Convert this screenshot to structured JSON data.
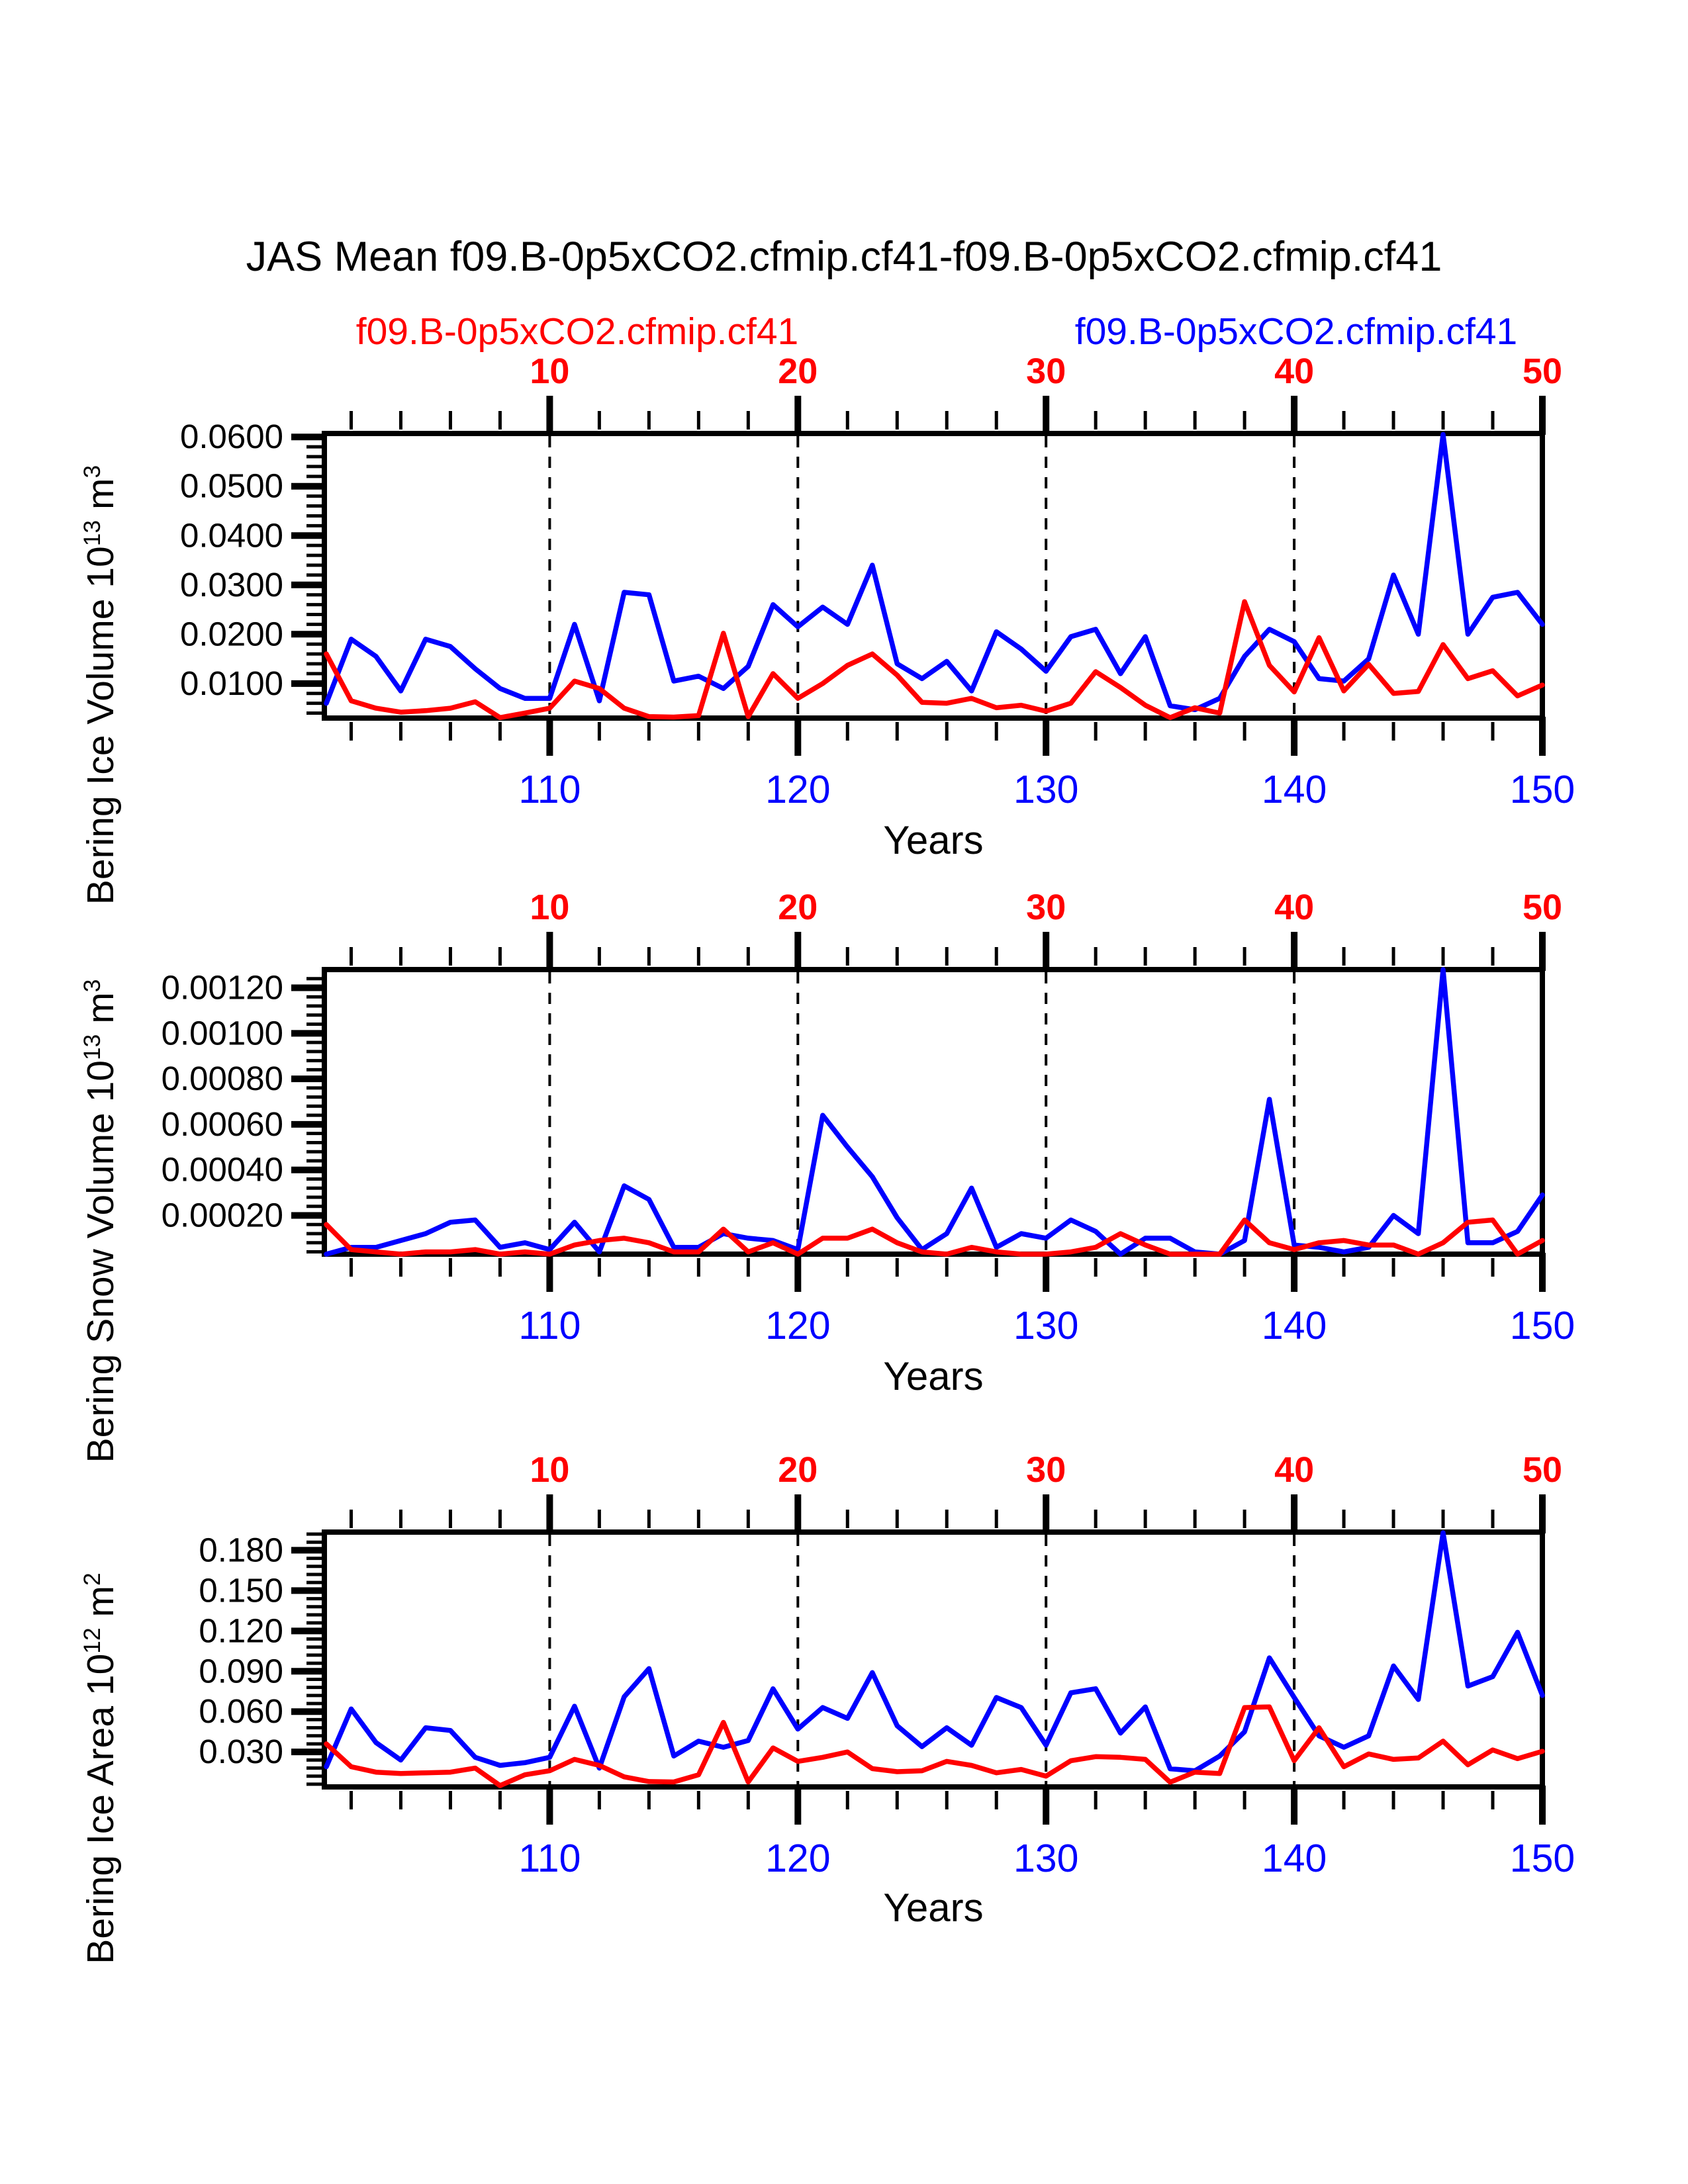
{
  "page": {
    "title": "JAS Mean f09.B-0p5xCO2.cfmip.cf41-f09.B-0p5xCO2.cfmip.cf41"
  },
  "legend": {
    "series1_label": "f09.B-0p5xCO2.cfmip.cf41",
    "series1_color": "#ff0000",
    "series2_label": "f09.B-0p5xCO2.cfmip.cf41",
    "series2_color": "#0000ff",
    "position": "top"
  },
  "chart_data": [
    {
      "type": "line",
      "panel": "bering-ice-volume",
      "ylabel": {
        "base": "Bering Ice Volume 10",
        "exp": "13",
        "unit": "m",
        "unit_exp": "3"
      },
      "xlabel": "Years",
      "top_axis_ticks": [
        10,
        20,
        30,
        40,
        50
      ],
      "top_axis_color": "#ff0000",
      "bottom_axis_ticks": [
        110,
        120,
        130,
        140,
        150
      ],
      "bottom_axis_color": "#0000ff",
      "grid_years": [
        110,
        120,
        130,
        140
      ],
      "grid_style": "dashed",
      "x_start": 101,
      "x": [
        101,
        102,
        103,
        104,
        105,
        106,
        107,
        108,
        109,
        110,
        111,
        112,
        113,
        114,
        115,
        116,
        117,
        118,
        119,
        120,
        121,
        122,
        123,
        124,
        125,
        126,
        127,
        128,
        129,
        130,
        131,
        132,
        133,
        134,
        135,
        136,
        137,
        138,
        139,
        140,
        141,
        142,
        143,
        144,
        145,
        146,
        147,
        148,
        149,
        150
      ],
      "ylim": [
        0.003,
        0.0607
      ],
      "yticks": [
        {
          "value": 0.06,
          "label": "0.0600"
        },
        {
          "value": 0.05,
          "label": "0.0500"
        },
        {
          "value": 0.04,
          "label": "0.0400"
        },
        {
          "value": 0.03,
          "label": "0.0300"
        },
        {
          "value": 0.02,
          "label": "0.0200"
        },
        {
          "value": 0.01,
          "label": "0.0100"
        }
      ],
      "y_minor": {
        "start": 0.004,
        "step": 0.002,
        "end": 0.0585,
        "major": 0.01
      },
      "series": [
        {
          "name": "f09.B-0p5xCO2.cfmip.cf41",
          "color": "#ff0000",
          "values": [
            0.016,
            0.0065,
            0.005,
            0.0042,
            0.0045,
            0.005,
            0.0063,
            0.0031,
            0.004,
            0.005,
            0.0105,
            0.009,
            0.005,
            0.0033,
            0.0032,
            0.0035,
            0.0202,
            0.0033,
            0.012,
            0.007,
            0.01,
            0.0137,
            0.016,
            0.0117,
            0.0062,
            0.006,
            0.007,
            0.0051,
            0.0056,
            0.0044,
            0.006,
            0.0124,
            0.0092,
            0.0056,
            0.0031,
            0.0051,
            0.004,
            0.0266,
            0.0137,
            0.0083,
            0.0193,
            0.0085,
            0.0139,
            0.008,
            0.0084,
            0.0179,
            0.011,
            0.0126,
            0.0075,
            0.0097
          ]
        },
        {
          "name": "f09.B-0p5xCO2.cfmip.cf41",
          "color": "#0000ff",
          "values": [
            0.006,
            0.019,
            0.0155,
            0.0085,
            0.019,
            0.0175,
            0.013,
            0.009,
            0.007,
            0.007,
            0.022,
            0.0065,
            0.0285,
            0.028,
            0.0105,
            0.0115,
            0.009,
            0.0135,
            0.026,
            0.0215,
            0.0255,
            0.022,
            0.034,
            0.014,
            0.011,
            0.0145,
            0.0085,
            0.0205,
            0.017,
            0.0125,
            0.0195,
            0.021,
            0.012,
            0.0195,
            0.0055,
            0.0047,
            0.007,
            0.0155,
            0.021,
            0.0185,
            0.011,
            0.0105,
            0.015,
            0.032,
            0.02,
            0.0605,
            0.02,
            0.0275,
            0.0285,
            0.022
          ]
        }
      ]
    },
    {
      "type": "line",
      "panel": "bering-snow-volume",
      "ylabel": {
        "base": "Bering Snow Volume 10",
        "exp": "13",
        "unit": "m",
        "unit_exp": "3"
      },
      "xlabel": "Years",
      "top_axis_ticks": [
        10,
        20,
        30,
        40,
        50
      ],
      "top_axis_color": "#ff0000",
      "bottom_axis_ticks": [
        110,
        120,
        130,
        140,
        150
      ],
      "bottom_axis_color": "#0000ff",
      "grid_years": [
        110,
        120,
        130,
        140
      ],
      "grid_style": "dashed",
      "x_start": 101,
      "x": [
        101,
        102,
        103,
        104,
        105,
        106,
        107,
        108,
        109,
        110,
        111,
        112,
        113,
        114,
        115,
        116,
        117,
        118,
        119,
        120,
        121,
        122,
        123,
        124,
        125,
        126,
        127,
        128,
        129,
        130,
        131,
        132,
        133,
        134,
        135,
        136,
        137,
        138,
        139,
        140,
        141,
        142,
        143,
        144,
        145,
        146,
        147,
        148,
        149,
        150
      ],
      "ylim": [
        3e-05,
        0.00128
      ],
      "yticks": [
        {
          "value": 0.0012,
          "label": "0.00120"
        },
        {
          "value": 0.001,
          "label": "0.00100"
        },
        {
          "value": 0.0008,
          "label": "0.00080"
        },
        {
          "value": 0.0006,
          "label": "0.00060"
        },
        {
          "value": 0.0004,
          "label": "0.00040"
        },
        {
          "value": 0.0002,
          "label": "0.00020"
        }
      ],
      "y_minor": {
        "start": 4e-05,
        "step": 4e-05,
        "end": 0.00125,
        "major": 0.0002
      },
      "series": [
        {
          "name": "f09.B-0p5xCO2.cfmip.cf41",
          "color": "#ff0000",
          "values": [
            0.00016,
            5e-05,
            4e-05,
            3e-05,
            4e-05,
            4e-05,
            5e-05,
            3e-05,
            4e-05,
            3e-05,
            7e-05,
            9e-05,
            0.0001,
            8e-05,
            4e-05,
            4e-05,
            0.00014,
            4e-05,
            8e-05,
            3e-05,
            0.0001,
            0.0001,
            0.00014,
            8e-05,
            4e-05,
            3e-05,
            6e-05,
            4e-05,
            3e-05,
            3e-05,
            4e-05,
            6e-05,
            0.00012,
            7e-05,
            3e-05,
            3e-05,
            3e-05,
            0.00018,
            8e-05,
            5e-05,
            8e-05,
            9e-05,
            7e-05,
            7e-05,
            3e-05,
            8e-05,
            0.00017,
            0.00018,
            3e-05,
            9e-05
          ]
        },
        {
          "name": "f09.B-0p5xCO2.cfmip.cf41",
          "color": "#0000ff",
          "values": [
            3e-05,
            6e-05,
            6e-05,
            9e-05,
            0.00012,
            0.00017,
            0.00018,
            6e-05,
            8e-05,
            5e-05,
            0.00017,
            4e-05,
            0.00033,
            0.00027,
            6e-05,
            6e-05,
            0.00012,
            0.0001,
            9e-05,
            5e-05,
            0.00064,
            0.0005,
            0.00037,
            0.00019,
            5e-05,
            0.00012,
            0.00032,
            6e-05,
            0.00012,
            0.0001,
            0.00018,
            0.00013,
            3e-05,
            0.0001,
            0.0001,
            4e-05,
            3e-05,
            9e-05,
            0.00071,
            7e-05,
            6e-05,
            4e-05,
            6e-05,
            0.0002,
            0.00012,
            0.00128,
            8e-05,
            8e-05,
            0.00013,
            0.00029
          ]
        }
      ]
    },
    {
      "type": "line",
      "panel": "bering-ice-area",
      "ylabel": {
        "base": "Bering Ice Area 10",
        "exp": "12",
        "unit": "m",
        "unit_exp": "2"
      },
      "xlabel": "Years",
      "top_axis_ticks": [
        10,
        20,
        30,
        40,
        50
      ],
      "top_axis_color": "#ff0000",
      "bottom_axis_ticks": [
        110,
        120,
        130,
        140,
        150
      ],
      "bottom_axis_color": "#0000ff",
      "grid_years": [
        110,
        120,
        130,
        140
      ],
      "grid_style": "dashed",
      "x_start": 101,
      "x": [
        101,
        102,
        103,
        104,
        105,
        106,
        107,
        108,
        109,
        110,
        111,
        112,
        113,
        114,
        115,
        116,
        117,
        118,
        119,
        120,
        121,
        122,
        123,
        124,
        125,
        126,
        127,
        128,
        129,
        130,
        131,
        132,
        133,
        134,
        135,
        136,
        137,
        138,
        139,
        140,
        141,
        142,
        143,
        144,
        145,
        146,
        147,
        148,
        149,
        150
      ],
      "ylim": [
        0.004,
        0.1935
      ],
      "yticks": [
        {
          "value": 0.18,
          "label": "0.180"
        },
        {
          "value": 0.15,
          "label": "0.150"
        },
        {
          "value": 0.12,
          "label": "0.120"
        },
        {
          "value": 0.09,
          "label": "0.090"
        },
        {
          "value": 0.06,
          "label": "0.060"
        },
        {
          "value": 0.03,
          "label": "0.030"
        }
      ],
      "y_minor": {
        "start": 0.006,
        "step": 0.006,
        "end": 0.192,
        "major": 0.03
      },
      "series": [
        {
          "name": "f09.B-0p5xCO2.cfmip.cf41",
          "color": "#ff0000",
          "values": [
            0.036,
            0.019,
            0.015,
            0.014,
            0.0145,
            0.015,
            0.018,
            0.005,
            0.013,
            0.016,
            0.0245,
            0.02,
            0.0115,
            0.008,
            0.0077,
            0.013,
            0.052,
            0.0077,
            0.033,
            0.023,
            0.026,
            0.03,
            0.0176,
            0.0153,
            0.016,
            0.023,
            0.02,
            0.0145,
            0.017,
            0.012,
            0.0235,
            0.0265,
            0.026,
            0.0245,
            0.0075,
            0.015,
            0.014,
            0.063,
            0.0635,
            0.0235,
            0.048,
            0.019,
            0.0285,
            0.0245,
            0.0255,
            0.038,
            0.0205,
            0.0315,
            0.025,
            0.0305
          ]
        },
        {
          "name": "f09.B-0p5xCO2.cfmip.cf41",
          "color": "#0000ff",
          "values": [
            0.019,
            0.062,
            0.037,
            0.024,
            0.048,
            0.046,
            0.026,
            0.02,
            0.022,
            0.026,
            0.064,
            0.018,
            0.071,
            0.092,
            0.027,
            0.038,
            0.0335,
            0.0385,
            0.077,
            0.047,
            0.063,
            0.055,
            0.089,
            0.0495,
            0.034,
            0.048,
            0.035,
            0.0705,
            0.063,
            0.035,
            0.074,
            0.077,
            0.044,
            0.0635,
            0.0175,
            0.016,
            0.027,
            0.045,
            0.1,
            0.0705,
            0.042,
            0.0335,
            0.042,
            0.094,
            0.069,
            0.193,
            0.079,
            0.086,
            0.119,
            0.072
          ]
        }
      ]
    }
  ]
}
